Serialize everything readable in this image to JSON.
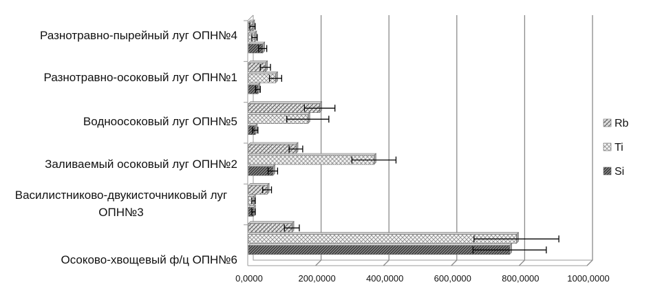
{
  "chart_data": {
    "type": "bar",
    "orientation": "horizontal",
    "title": "",
    "xlabel": "",
    "ylabel": "",
    "xlim": [
      0,
      1000
    ],
    "grid": true,
    "legend_position": "right",
    "tick_labels": [
      "0,0000",
      "200,0000",
      "400,0000",
      "600,0000",
      "800,0000",
      "1000,0000"
    ],
    "categories": [
      [
        "Разнотравно-пырейный луг ОПН№4"
      ],
      [
        "Разнотравно-осоковый луг ОПН№1"
      ],
      [
        "Водноосоковый луг ОПН№5"
      ],
      [
        "Заливаемый осоковый луг ОПН№2"
      ],
      [
        "Василистниково-двукисточниковый луг",
        "ОПН№3"
      ],
      [
        "Осоково-хвощевый ф/ц ОПН№6"
      ]
    ],
    "series": [
      {
        "name": "Rb",
        "values": [
          12,
          50,
          210,
          140,
          55,
          128
        ],
        "errors": [
          8,
          15,
          45,
          20,
          13,
          22
        ]
      },
      {
        "name": "Ti",
        "values": [
          18,
          80,
          175,
          370,
          15,
          790
        ],
        "errors": [
          8,
          18,
          62,
          65,
          5,
          125
        ]
      },
      {
        "name": "Si",
        "values": [
          42,
          28,
          20,
          72,
          15,
          770
        ],
        "errors": [
          12,
          7,
          8,
          14,
          5,
          108
        ]
      }
    ]
  }
}
